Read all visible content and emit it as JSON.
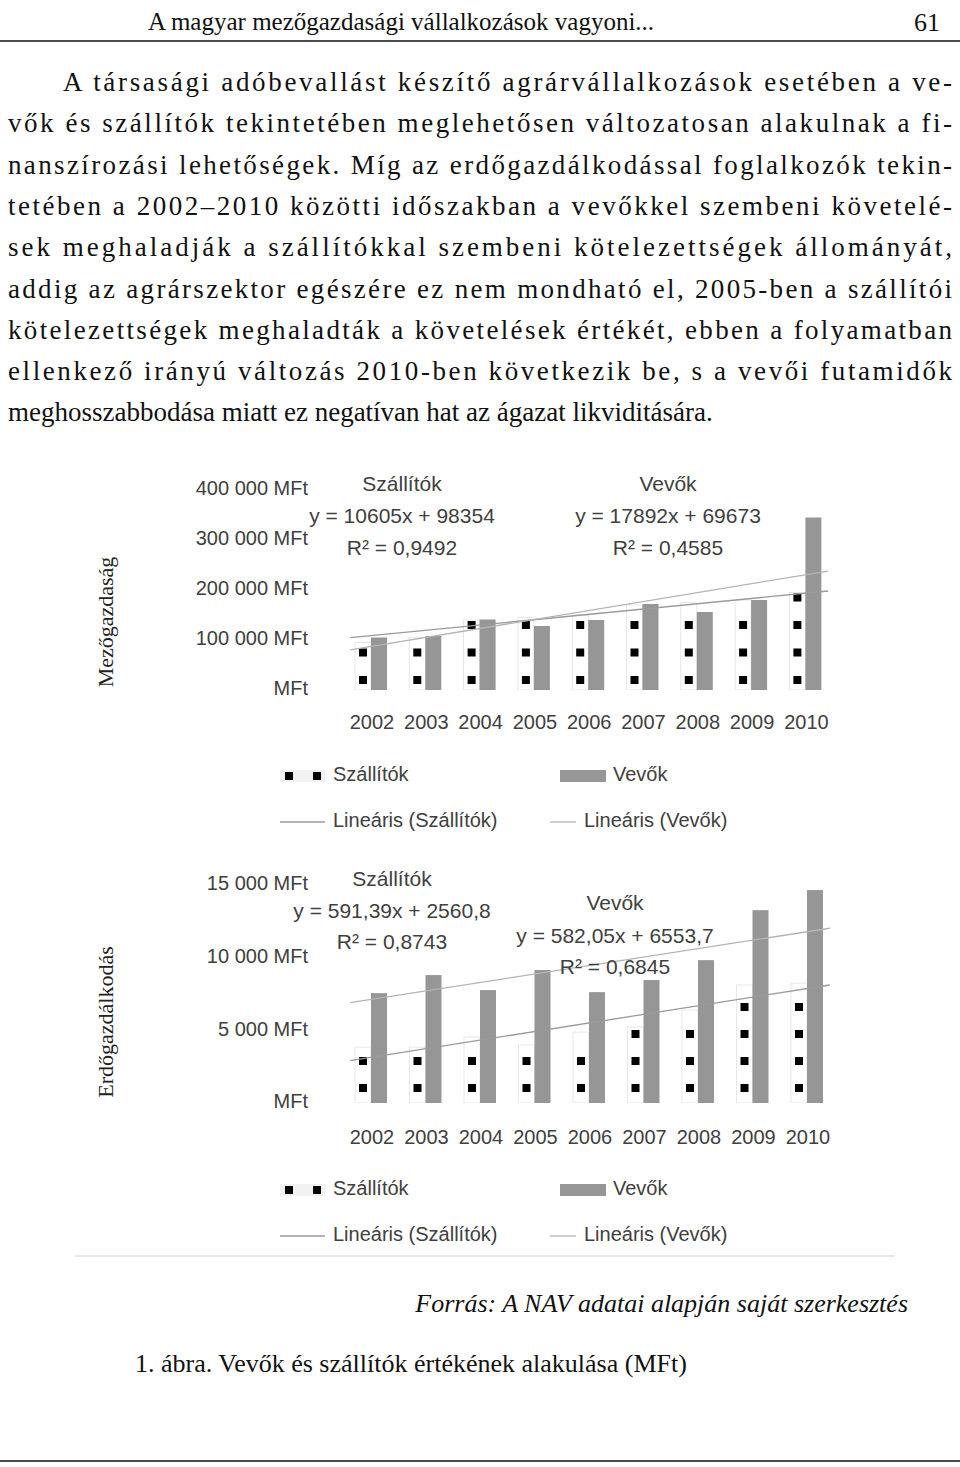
{
  "header": {
    "title": "A magyar mezőgazdasági vállalkozások vagyoni...",
    "page_number": "61"
  },
  "body": {
    "lines": [
      "A társasági adóbevallást készítő agrárvállalkozások esetében a ve-",
      "vők és szállítók tekintetében meglehetősen változatosan alakulnak a fi-",
      "nanszírozási lehetőségek. Míg az erdőgazdálkodással foglalkozók tekin-",
      "tetében a 2002–2010 közötti időszakban a vevőkkel szembeni követelé-",
      "sek meghaladják a szállítókkal szembeni kötelezettségek állományát,",
      "addig az agrárszektor egészére ez nem mondható el, 2005-ben a szállítói",
      "kötelezettségek meghaladták a követelések értékét, ebben a folyamatban",
      "ellenkező irányú változás 2010-ben következik be, s a vevői futamidők",
      "meghosszabbodása miatt ez  negatívan hat az ágazat likviditására."
    ]
  },
  "chart_data": [
    {
      "type": "bar",
      "title": "Mezőgazdaság",
      "categories": [
        "2002",
        "2003",
        "2004",
        "2005",
        "2006",
        "2007",
        "2008",
        "2009",
        "2010"
      ],
      "series": [
        {
          "name": "Szállítók",
          "color": "#000000",
          "marker": "square",
          "values": [
            95000,
            105000,
            140000,
            145000,
            150000,
            170000,
            175000,
            180000,
            195000
          ],
          "trend": {
            "name": "Lineáris (Szállítók)",
            "equation": "y = 10605x + 98354",
            "r2_label": "R² = 0,9492",
            "slope": 10605,
            "intercept": 98354
          }
        },
        {
          "name": "Vevők",
          "color": "#969696",
          "values": [
            105000,
            108000,
            141000,
            128000,
            140000,
            172000,
            156000,
            180000,
            345000
          ],
          "trend": {
            "name": "Lineáris (Vevők)",
            "equation": "y = 17892x + 69673",
            "r2_label": "R² = 0,4585",
            "slope": 17892,
            "intercept": 69673
          }
        }
      ],
      "ylim": [
        0,
        400000
      ],
      "yticks": [
        {
          "value": 0,
          "label": "MFt"
        },
        {
          "value": 100000,
          "label": "100 000 MFt"
        },
        {
          "value": 200000,
          "label": "200 000 MFt"
        },
        {
          "value": 300000,
          "label": "300 000 MFt"
        },
        {
          "value": 400000,
          "label": "400 000 MFt"
        }
      ],
      "grid": false,
      "legend": "bottom"
    },
    {
      "type": "bar",
      "title": "Erdőgazdálkodás",
      "categories": [
        "2002",
        "2003",
        "2004",
        "2005",
        "2006",
        "2007",
        "2008",
        "2009",
        "2010"
      ],
      "series": [
        {
          "name": "Szállítók",
          "color": "#000000",
          "marker": "square",
          "values": [
            3850,
            3850,
            4540,
            3990,
            4880,
            5230,
            6400,
            8120,
            8250
          ],
          "trend": {
            "name": "Lineáris (Szállítók)",
            "equation": "y = 591,39x + 2560,8",
            "r2_label": "R² = 0,8743",
            "slope": 591.39,
            "intercept": 2560.8
          }
        },
        {
          "name": "Vevők",
          "color": "#969696",
          "values": [
            7560,
            8800,
            7770,
            9150,
            7630,
            8460,
            9830,
            13270,
            14650
          ],
          "trend": {
            "name": "Lineáris (Vevők)",
            "equation": "y = 582,05x + 6553,7",
            "r2_label": "R² = 0,6845",
            "slope": 582.05,
            "intercept": 6553.7
          }
        }
      ],
      "ylim": [
        0,
        15000
      ],
      "yticks": [
        {
          "value": 0,
          "label": "MFt"
        },
        {
          "value": 5000,
          "label": "5 000 MFt"
        },
        {
          "value": 10000,
          "label": "10 000 MFt"
        },
        {
          "value": 15000,
          "label": "15 000 MFt"
        }
      ],
      "grid": false,
      "legend": "bottom"
    }
  ],
  "figure": {
    "source": "Forrás: A NAV adatai alapján saját szerkesztés",
    "caption": "1. ábra. Vevők és szállítók értékének alakulása (MFt)"
  }
}
